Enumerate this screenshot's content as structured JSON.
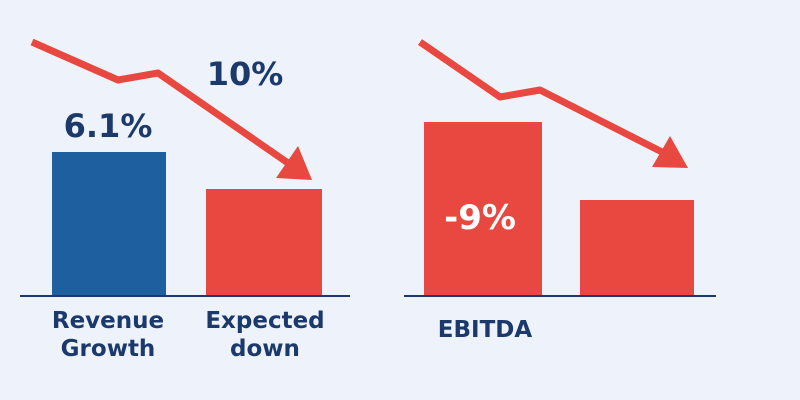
{
  "panels": [
    {
      "bars": [
        {
          "value_label": "6.1%",
          "caption": [
            "Revenue",
            "Growth"
          ]
        },
        {
          "caption": [
            "Expected",
            "down"
          ]
        }
      ],
      "arrow_label": "10%"
    },
    {
      "bars": [
        {
          "value_label": "-9%",
          "caption": [
            "EBITDA"
          ]
        },
        {}
      ]
    }
  ]
}
